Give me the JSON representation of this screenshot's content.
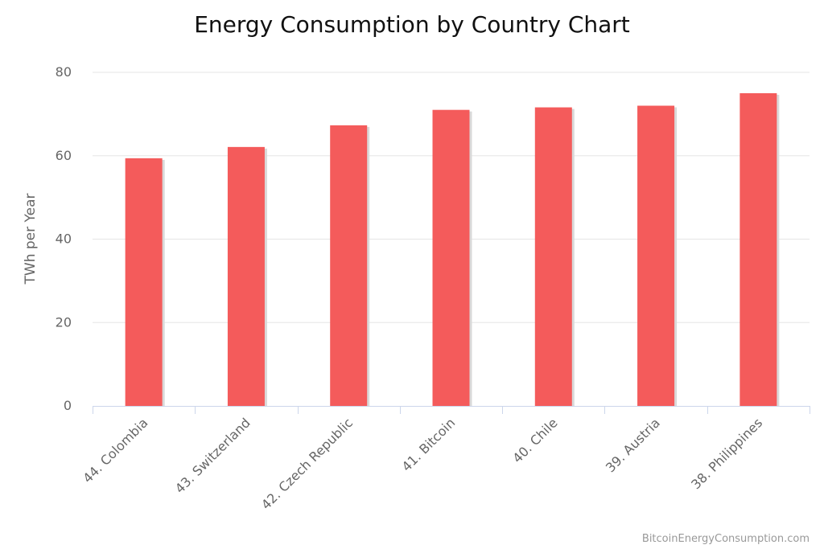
{
  "chart_data": {
    "type": "bar",
    "title": "Energy Consumption by Country Chart",
    "xlabel": "",
    "ylabel": "TWh per Year",
    "categories": [
      "44. Colombia",
      "43. Switzerland",
      "42. Czech Republic",
      "41. Bitcoin",
      "40. Chile",
      "39. Austria",
      "38. Philippines"
    ],
    "values": [
      59.4,
      62.1,
      67.3,
      71.0,
      71.6,
      72.0,
      75.0
    ],
    "ylim": [
      0,
      80
    ],
    "yticks": [
      0,
      20,
      40,
      60,
      80
    ],
    "grid": true,
    "legend": "none",
    "colors": {
      "bar": "#f45b5b",
      "bar_shadow": "#d9d9d9"
    }
  },
  "credit": "BitcoinEnergyConsumption.com"
}
